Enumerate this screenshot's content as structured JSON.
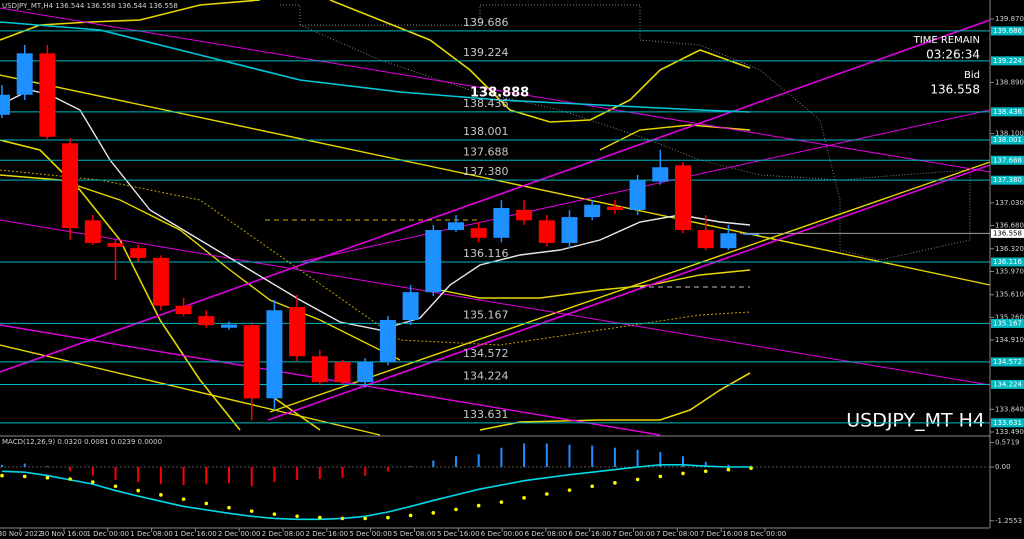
{
  "header": "USDJPY_MT,H4 136.544 136.558 136.544 136.558",
  "symbol_label": "USDJPY_MT H4",
  "time_remain": {
    "label": "TIME REMAIN",
    "value": "03:26:34"
  },
  "bid": {
    "label": "Bid",
    "value": 136.558
  },
  "annotation": 138.888,
  "chart_data": [
    {
      "type": "candlestick",
      "up_color": "#1e90ff",
      "down_color": "#ff0000",
      "level_color": "#00b8c0",
      "open": [
        138.39,
        138.7,
        139.34,
        137.95,
        136.76,
        136.41,
        136.33,
        136.18,
        135.44,
        135.28,
        135.1,
        135.14,
        134.01,
        135.42,
        134.66,
        134.57,
        134.26,
        134.57,
        135.22,
        135.65,
        136.61,
        136.64,
        136.49,
        136.92,
        136.76,
        136.41,
        136.81,
        136.97,
        136.92,
        137.36,
        137.61,
        136.61,
        136.33,
        136.544
      ],
      "high": [
        138.85,
        139.47,
        139.47,
        138.03,
        136.84,
        136.46,
        136.38,
        136.22,
        135.56,
        135.37,
        135.2,
        135.19,
        135.53,
        135.61,
        134.76,
        134.6,
        134.63,
        135.28,
        135.76,
        136.69,
        136.84,
        136.73,
        137.07,
        137.07,
        136.84,
        136.92,
        137.07,
        137.07,
        137.46,
        137.85,
        137.66,
        136.84,
        136.69,
        136.558
      ],
      "low": [
        138.34,
        138.62,
        138.0,
        136.46,
        136.38,
        135.84,
        136.12,
        135.37,
        135.28,
        135.1,
        135.07,
        133.67,
        133.83,
        134.57,
        134.22,
        134.23,
        134.17,
        134.52,
        135.14,
        135.59,
        136.58,
        136.42,
        136.42,
        136.69,
        136.36,
        136.33,
        136.76,
        136.86,
        136.84,
        137.31,
        136.56,
        136.3,
        136.3,
        136.544
      ],
      "close": [
        138.7,
        139.34,
        138.05,
        136.64,
        136.41,
        136.35,
        136.18,
        135.44,
        135.31,
        135.14,
        135.15,
        134.01,
        135.37,
        134.66,
        134.26,
        134.26,
        134.57,
        135.22,
        135.65,
        136.61,
        136.73,
        136.49,
        136.95,
        136.76,
        136.41,
        136.81,
        137.0,
        136.92,
        137.38,
        137.58,
        136.61,
        136.33,
        136.56,
        136.558
      ],
      "time_labels": [
        "30 Nov 2022",
        "30 Nov 16:00",
        "1 Dec 00:00",
        "1 Dec 08:00",
        "1 Dec 16:00",
        "2 Dec 00:00",
        "2 Dec 08:00",
        "2 Dec 16:00",
        "5 Dec 00:00",
        "5 Dec 08:00",
        "5 Dec 16:00",
        "6 Dec 00:00",
        "6 Dec 08:00",
        "6 Dec 16:00",
        "7 Dec 00:00",
        "7 Dec 08:00",
        "7 Dec 16:00",
        "8 Dec 00:00"
      ],
      "ylim": [
        133.443,
        140.164
      ],
      "yticks": [
        {
          "value": 139.87,
          "label": "139.870"
        },
        {
          "value": 138.89,
          "label": "138.890"
        },
        {
          "value": 138.1,
          "label": "138.100"
        },
        {
          "value": 137.03,
          "label": "137.030"
        },
        {
          "value": 136.68,
          "label": "136.680"
        },
        {
          "value": 136.32,
          "label": "136.320"
        },
        {
          "value": 135.97,
          "label": "135.970"
        },
        {
          "value": 135.61,
          "label": "135.610"
        },
        {
          "value": 135.26,
          "label": "135.260"
        },
        {
          "value": 134.91,
          "label": "134.910"
        },
        {
          "value": 133.84,
          "label": "133.840"
        },
        {
          "value": 133.49,
          "label": "133.490"
        }
      ],
      "levels": [
        {
          "value": 139.686,
          "label": "139.686"
        },
        {
          "value": 139.224,
          "label": "139.224"
        },
        {
          "value": 138.436,
          "label": "138.436"
        },
        {
          "value": 138.001,
          "label": "138.001"
        },
        {
          "value": 137.688,
          "label": "137.688"
        },
        {
          "value": 137.38,
          "label": "137.380"
        },
        {
          "value": 136.116,
          "label": "136.116"
        },
        {
          "value": 135.167,
          "label": "135.167"
        },
        {
          "value": 134.572,
          "label": "134.572"
        },
        {
          "value": 134.224,
          "label": "134.224"
        },
        {
          "value": 133.631,
          "label": "133.631"
        }
      ]
    },
    {
      "type": "macd",
      "title": "MACD(12,26,9) 0.0320 0.0081 0.0239 0.0000",
      "ylim": [
        -1.4,
        0.7
      ],
      "yticks": [
        0.5719,
        {
          "value": 0,
          "label": "0.00"
        },
        -1.2553
      ],
      "series": [
        {
          "name": "histogram",
          "color": "#1e90ff",
          "negative_color": "#ff0000",
          "values": [
            0.05,
            0.08,
            0.02,
            -0.1,
            -0.2,
            -0.3,
            -0.35,
            -0.4,
            -0.42,
            -0.4,
            -0.38,
            -0.45,
            -0.35,
            -0.3,
            -0.28,
            -0.25,
            -0.2,
            -0.1,
            0.02,
            0.15,
            0.25,
            0.3,
            0.45,
            0.55,
            0.55,
            0.52,
            0.5,
            0.45,
            0.4,
            0.35,
            0.25,
            0.12,
            0.05,
            0.03
          ]
        },
        {
          "name": "main",
          "color": "#00d8e8",
          "values": [
            -0.1,
            -0.12,
            -0.2,
            -0.3,
            -0.4,
            -0.55,
            -0.68,
            -0.8,
            -0.92,
            -1.0,
            -1.08,
            -1.15,
            -1.2,
            -1.22,
            -1.22,
            -1.2,
            -1.15,
            -1.05,
            -0.92,
            -0.78,
            -0.65,
            -0.52,
            -0.42,
            -0.32,
            -0.25,
            -0.18,
            -0.12,
            -0.06,
            0.0,
            0.05,
            0.05,
            0.02,
            0.0,
            0.0
          ]
        },
        {
          "name": "signal",
          "color": "#ffff00",
          "values": [
            -0.2,
            -0.22,
            -0.25,
            -0.28,
            -0.35,
            -0.45,
            -0.55,
            -0.65,
            -0.75,
            -0.85,
            -0.95,
            -1.03,
            -1.1,
            -1.15,
            -1.18,
            -1.2,
            -1.2,
            -1.18,
            -1.13,
            -1.07,
            -0.99,
            -0.9,
            -0.82,
            -0.72,
            -0.63,
            -0.54,
            -0.45,
            -0.37,
            -0.29,
            -0.22,
            -0.15,
            -0.1,
            -0.06,
            -0.03
          ]
        }
      ]
    }
  ]
}
